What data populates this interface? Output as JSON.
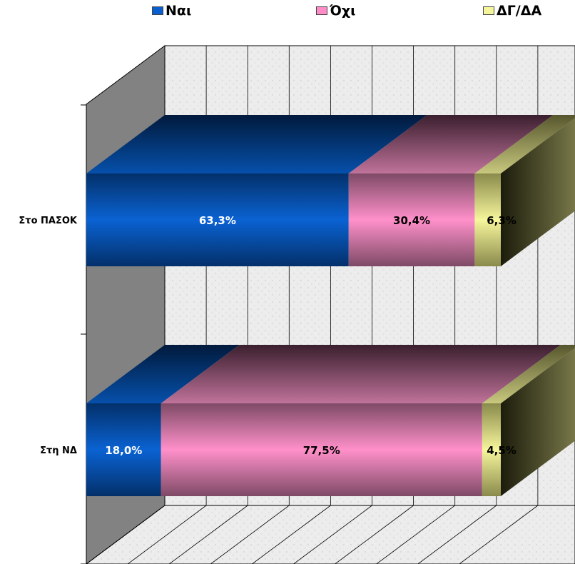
{
  "chart_data": {
    "type": "bar",
    "orientation": "horizontal",
    "stacked": "percent",
    "style": "3d",
    "categories": [
      "Στο ΠΑΣΟΚ",
      "Στη ΝΔ"
    ],
    "series": [
      {
        "name": "Ναι",
        "values": [
          63.3,
          18.0
        ],
        "labels": [
          "63,3%",
          "18,0%"
        ],
        "color": "#0a5fd0"
      },
      {
        "name": "Όχι",
        "values": [
          30.4,
          77.5
        ],
        "labels": [
          "30,4%",
          "77,5%"
        ],
        "color": "#ff8cc8"
      },
      {
        "name": "ΔΓ/ΔΑ",
        "values": [
          6.3,
          4.5
        ],
        "labels": [
          "6,3%",
          "4,5%"
        ],
        "color": "#f4f49a"
      }
    ],
    "xlim": [
      0,
      100
    ],
    "grid": true,
    "legend_position": "top",
    "title": "",
    "xlabel": "",
    "ylabel": ""
  }
}
